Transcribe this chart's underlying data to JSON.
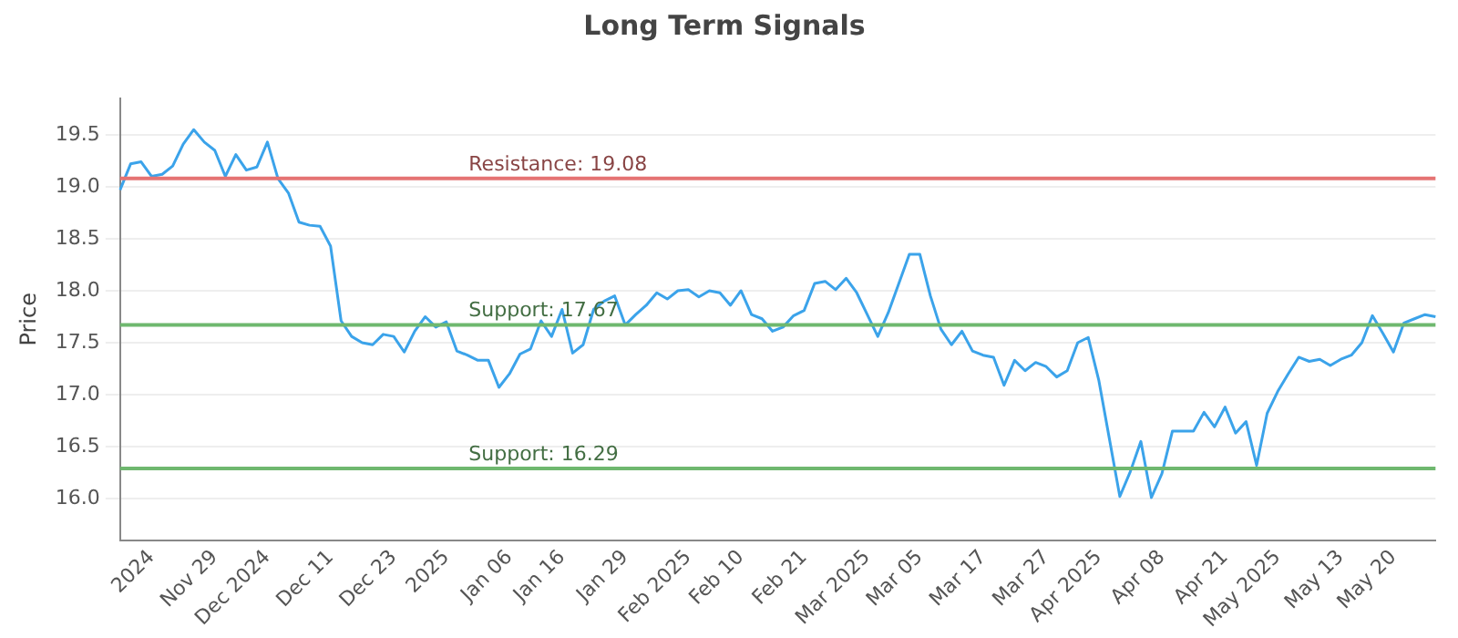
{
  "chart_data": {
    "type": "line",
    "title": "Long Term Signals",
    "ylabel": "Price",
    "categories": [
      null,
      null,
      null,
      "2024",
      null,
      null,
      null,
      null,
      null,
      "Nov 29",
      null,
      null,
      null,
      null,
      "Dec 2024",
      null,
      null,
      null,
      null,
      null,
      "Dec 11",
      null,
      null,
      null,
      null,
      null,
      "Dec 23",
      null,
      null,
      null,
      null,
      "2025",
      null,
      null,
      null,
      null,
      null,
      "Jan 06",
      null,
      null,
      null,
      null,
      "Jan 16",
      null,
      null,
      null,
      null,
      null,
      "Jan 29",
      null,
      null,
      null,
      null,
      null,
      "Feb 2025",
      null,
      null,
      null,
      null,
      "Feb 10",
      null,
      null,
      null,
      null,
      null,
      "Feb 21",
      null,
      null,
      null,
      null,
      null,
      "Mar 2025",
      null,
      null,
      null,
      null,
      "Mar 05",
      null,
      null,
      null,
      null,
      null,
      "Mar 17",
      null,
      null,
      null,
      null,
      null,
      "Mar 27",
      null,
      null,
      null,
      null,
      "Apr 2025",
      null,
      null,
      null,
      null,
      null,
      "Apr 08",
      null,
      null,
      null,
      null,
      null,
      "Apr 21",
      null,
      null,
      null,
      null,
      "May 2025",
      null,
      null,
      null,
      null,
      null,
      "May 13",
      null,
      null,
      null,
      null,
      "May 20",
      null,
      null,
      null,
      null
    ],
    "series": [
      {
        "color": "#3ba3ea",
        "values": [
          18.97,
          19.22,
          19.24,
          19.1,
          19.12,
          19.2,
          19.41,
          19.55,
          19.43,
          19.35,
          19.1,
          19.31,
          19.16,
          19.19,
          19.43,
          19.08,
          18.94,
          18.66,
          18.63,
          18.62,
          18.43,
          17.71,
          17.56,
          17.5,
          17.48,
          17.58,
          17.56,
          17.41,
          17.61,
          17.75,
          17.65,
          17.7,
          17.42,
          17.38,
          17.33,
          17.33,
          17.07,
          17.2,
          17.39,
          17.44,
          17.71,
          17.56,
          17.82,
          17.4,
          17.48,
          17.82,
          17.9,
          17.95,
          17.67,
          17.77,
          17.86,
          17.98,
          17.92,
          18.0,
          18.01,
          17.94,
          18.0,
          17.98,
          17.86,
          18.0,
          17.77,
          17.73,
          17.61,
          17.65,
          17.76,
          17.81,
          18.07,
          18.09,
          18.01,
          18.12,
          17.98,
          17.77,
          17.56,
          17.79,
          18.07,
          18.35,
          18.35,
          17.95,
          17.63,
          17.48,
          17.61,
          17.42,
          17.38,
          17.36,
          17.09,
          17.33,
          17.23,
          17.31,
          17.27,
          17.17,
          17.23,
          17.5,
          17.55,
          17.14,
          16.58,
          16.02,
          16.26,
          16.55,
          16.01,
          16.24,
          16.65,
          16.65,
          16.65,
          16.83,
          16.69,
          16.88,
          16.63,
          16.74,
          16.32,
          16.82,
          17.03,
          17.2,
          17.36,
          17.32,
          17.34,
          17.28,
          17.34,
          17.38,
          17.5,
          17.76,
          17.59,
          17.41,
          17.69,
          17.73,
          17.77,
          17.75
        ]
      }
    ],
    "ylim": [
      15.6,
      19.85
    ],
    "yticks": [
      {
        "value": 16,
        "label": "16.0"
      },
      {
        "value": 16.5,
        "label": "16.5"
      },
      {
        "value": 17,
        "label": "17.0"
      },
      {
        "value": 17.5,
        "label": "17.5"
      },
      {
        "value": 18,
        "label": "18.0"
      },
      {
        "value": 18.5,
        "label": "18.5"
      },
      {
        "value": 19,
        "label": "19.0"
      },
      {
        "value": 19.5,
        "label": "19.5"
      }
    ],
    "ref_lines": [
      {
        "axis": "y",
        "value": 19.08,
        "label": "Resistance: 19.08",
        "color": "#e57373"
      },
      {
        "axis": "y",
        "value": 17.67,
        "label": "Support: 17.67",
        "color": "#6fb86f"
      },
      {
        "axis": "y",
        "value": 16.29,
        "label": "Support: 16.29",
        "color": "#6fb86f"
      }
    ],
    "grid": "y",
    "legend": false,
    "marker": "none",
    "line_style": "solid"
  }
}
